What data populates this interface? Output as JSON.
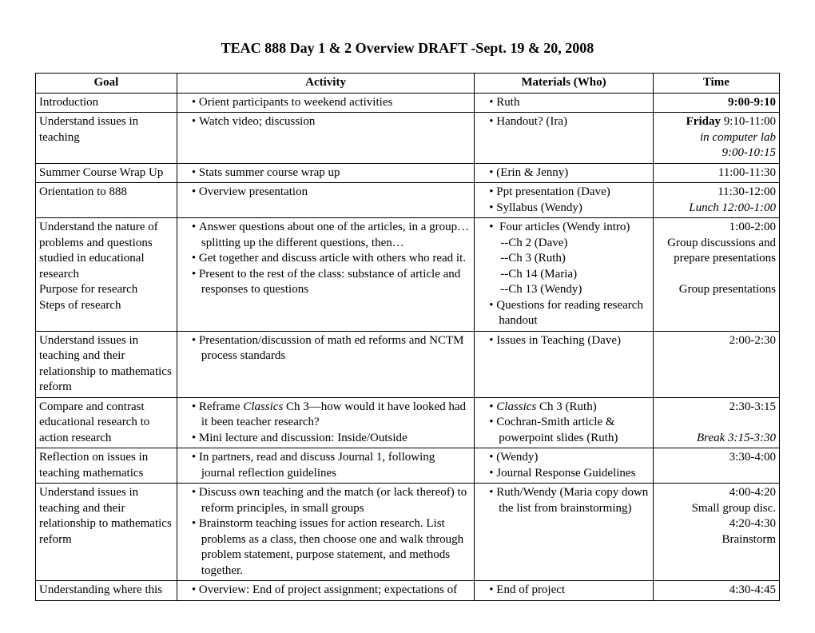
{
  "title": "TEAC 888 Day 1 & 2 Overview DRAFT -Sept. 19 & 20, 2008",
  "columns": {
    "goal": "Goal",
    "activity": "Activity",
    "materials": "Materials (Who)",
    "time": "Time"
  },
  "rows": {
    "r1": {
      "goal": "Introduction",
      "activity": "Orient participants to weekend activities",
      "materials": "Ruth",
      "time": "9:00-9:10"
    },
    "r2": {
      "goal": "Understand issues in teaching",
      "activity": "Watch video; discussion",
      "materials": "Handout? (Ira)",
      "time_bold": "Friday",
      "time_rest": " 9:10-11:00",
      "time_line2": "in computer lab",
      "time_line3": "9:00-10:15"
    },
    "r3": {
      "goal": "Summer Course Wrap Up",
      "activity": "Stats summer course wrap up",
      "materials": "(Erin & Jenny)",
      "time": "11:00-11:30"
    },
    "r4": {
      "goal": "Orientation to 888",
      "activity": "Overview presentation",
      "mat1": "Ppt presentation (Dave)",
      "mat2": "Syllabus (Wendy)",
      "time_line1": "11:30-12:00",
      "time_line2": "Lunch 12:00-1:00"
    },
    "r5": {
      "goal_l1": "Understand the nature of problems and questions studied in educational research",
      "goal_l2": "Purpose for research",
      "goal_l3": "Steps of research",
      "act1": "Answer questions about one of the articles, in a group…splitting up the different questions, then…",
      "act2": "Get together and discuss article with others who read it.",
      "act3": "Present to the rest of the class: substance of article and responses to questions",
      "mat1": "Four articles (Wendy intro)",
      "mat_sub1": "--Ch 2 (Dave)",
      "mat_sub2": "--Ch 3 (Ruth)",
      "mat_sub3": "--Ch 14 (Maria)",
      "mat_sub4": "--Ch 13 (Wendy)",
      "mat2": "Questions for reading research handout",
      "time_l1": "1:00-2:00",
      "time_l2": "Group discussions and prepare presentations",
      "time_l3": "Group presentations"
    },
    "r6": {
      "goal": "Understand issues in teaching and their relationship to mathematics reform",
      "activity": "Presentation/discussion of math ed reforms and NCTM process standards",
      "materials": "Issues in Teaching (Dave)",
      "time": "2:00-2:30"
    },
    "r7": {
      "goal": "Compare and contrast educational research to action research",
      "act1a": "Reframe ",
      "act1b": "Classics",
      "act1c": " Ch 3—how would it have looked had it been teacher research?",
      "act2": "Mini lecture and discussion: Inside/Outside",
      "mat1a": "Classics",
      "mat1b": " Ch 3 (Ruth)",
      "mat2": "Cochran-Smith article & powerpoint slides (Ruth)",
      "time_l1": "2:30-3:15",
      "time_l2": "Break 3:15-3:30"
    },
    "r8": {
      "goal": "Reflection on issues in teaching mathematics",
      "activity": "In partners, read and discuss Journal 1, following journal reflection guidelines",
      "mat1": "(Wendy)",
      "mat2": "Journal Response Guidelines",
      "time": "3:30-4:00"
    },
    "r9": {
      "goal": "Understand issues in teaching and their relationship to mathematics reform",
      "act1": "Discuss own teaching and the match (or lack thereof) to reform principles, in small groups",
      "act2": "Brainstorm teaching issues for action research.  List problems as a class, then choose one and walk through problem statement, purpose statement, and methods together.",
      "materials": "Ruth/Wendy (Maria copy down the list from brainstorming)",
      "time_l1": "4:00-4:20",
      "time_l2": "Small group disc.",
      "time_l3": "4:20-4:30",
      "time_l4": "Brainstorm"
    },
    "r10": {
      "goal": "Understanding where this",
      "activity": "Overview: End of project assignment; expectations of",
      "materials": "End of project",
      "time": "4:30-4:45"
    }
  }
}
